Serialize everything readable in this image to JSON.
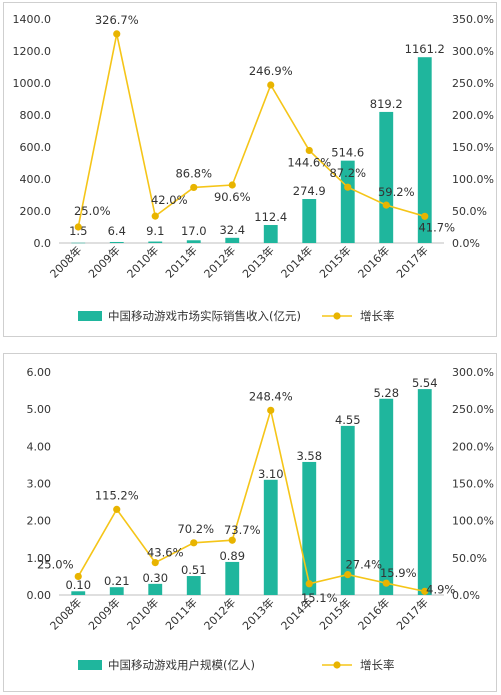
{
  "colors": {
    "bar": "#1fb69d",
    "line": "#f5c518",
    "marker": "#e8b400",
    "axis": "#bfbfbf",
    "text": "#333333"
  },
  "chart_data": [
    {
      "type": "bar",
      "categories": [
        "2008年",
        "2009年",
        "2010年",
        "2011年",
        "2012年",
        "2013年",
        "2014年",
        "2015年",
        "2016年",
        "2017年"
      ],
      "series": [
        {
          "name": "中国移动游戏市场实际销售收入(亿元)",
          "type": "bar",
          "axis": "left",
          "values": [
            1.5,
            6.4,
            9.1,
            17.0,
            32.4,
            112.4,
            274.9,
            514.6,
            819.2,
            1161.2
          ],
          "labels": [
            "1.5",
            "6.4",
            "9.1",
            "17.0",
            "32.4",
            "112.4",
            "274.9",
            "514.6",
            "819.2",
            "1161.2"
          ]
        },
        {
          "name": "增长率",
          "type": "line",
          "axis": "right",
          "values": [
            25.0,
            326.7,
            42.0,
            86.8,
            90.6,
            246.9,
            144.6,
            87.2,
            59.2,
            41.7
          ],
          "labels": [
            "25.0%",
            "326.7%",
            "42.0%",
            "86.8%",
            "90.6%",
            "246.9%",
            "144.6%",
            "87.2%",
            "59.2%",
            "41.7%"
          ]
        }
      ],
      "yleft": {
        "range": [
          0,
          1400
        ],
        "ticks": [
          "0.0",
          "200.0",
          "400.0",
          "600.0",
          "800.0",
          "1000.0",
          "1200.0",
          "1400.0"
        ]
      },
      "yright": {
        "range": [
          0,
          350
        ],
        "ticks": [
          "0.0%",
          "50.0%",
          "100.0%",
          "150.0%",
          "200.0%",
          "250.0%",
          "300.0%",
          "350.0%"
        ]
      },
      "grid": false,
      "legend_position": "bottom"
    },
    {
      "type": "bar",
      "categories": [
        "2008年",
        "2009年",
        "2010年",
        "2011年",
        "2012年",
        "2013年",
        "2014年",
        "2015年",
        "2016年",
        "2017年"
      ],
      "series": [
        {
          "name": "中国移动游戏用户规模(亿人)",
          "type": "bar",
          "axis": "left",
          "values": [
            0.1,
            0.21,
            0.3,
            0.51,
            0.89,
            3.1,
            3.58,
            4.55,
            5.28,
            5.54
          ],
          "labels": [
            "0.10",
            "0.21",
            "0.30",
            "0.51",
            "0.89",
            "3.10",
            "3.58",
            "4.55",
            "5.28",
            "5.54"
          ]
        },
        {
          "name": "增长率",
          "type": "line",
          "axis": "right",
          "values": [
            25.0,
            115.2,
            43.6,
            70.2,
            73.7,
            248.4,
            15.1,
            27.4,
            15.9,
            4.9
          ],
          "labels": [
            "25.0%",
            "115.2%",
            "43.6%",
            "70.2%",
            "73.7%",
            "248.4%",
            "15.1%",
            "27.4%",
            "15.9%",
            "4.9%"
          ]
        }
      ],
      "yleft": {
        "range": [
          0,
          6
        ],
        "ticks": [
          "0.00",
          "1.00",
          "2.00",
          "3.00",
          "4.00",
          "5.00",
          "6.00"
        ]
      },
      "yright": {
        "range": [
          0,
          300
        ],
        "ticks": [
          "0.0%",
          "50.0%",
          "100.0%",
          "150.0%",
          "200.0%",
          "250.0%",
          "300.0%"
        ]
      },
      "grid": false,
      "legend_position": "bottom"
    }
  ]
}
